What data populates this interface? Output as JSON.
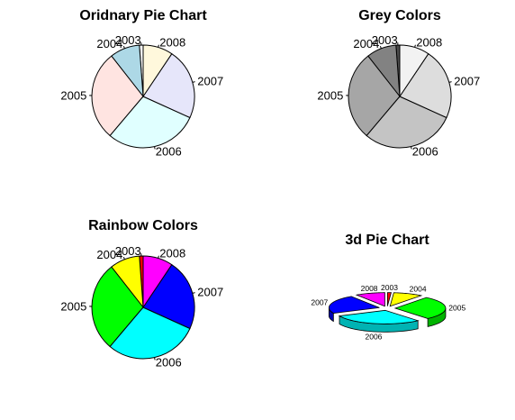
{
  "chart_data": [
    {
      "type": "pie",
      "title": "Oridnary Pie Chart",
      "categories": [
        "2003",
        "2004",
        "2005",
        "2006",
        "2007",
        "2008"
      ],
      "values": [
        1,
        8,
        24,
        25,
        19,
        8
      ],
      "colors": [
        "#ffffff",
        "#add8e6",
        "#ffe4e1",
        "#e0ffff",
        "#e6e6fa",
        "#fff8dc"
      ]
    },
    {
      "type": "pie",
      "title": "Grey Colors",
      "categories": [
        "2003",
        "2004",
        "2005",
        "2006",
        "2007",
        "2008"
      ],
      "values": [
        1,
        8,
        24,
        25,
        19,
        8
      ],
      "colors": [
        "#4d4d4d",
        "#828282",
        "#a6a6a6",
        "#c4c4c4",
        "#dddddd",
        "#f2f2f2"
      ]
    },
    {
      "type": "pie",
      "title": "Rainbow Colors",
      "categories": [
        "2003",
        "2004",
        "2005",
        "2006",
        "2007",
        "2008"
      ],
      "values": [
        1,
        8,
        24,
        25,
        19,
        8
      ],
      "colors": [
        "#ff0000",
        "#ffff00",
        "#00ff00",
        "#00ffff",
        "#0000ff",
        "#ff00ff"
      ]
    },
    {
      "type": "pie",
      "title": "3d Pie Chart",
      "categories": [
        "2003",
        "2004",
        "2005",
        "2006",
        "2007",
        "2008"
      ],
      "values": [
        1,
        8,
        24,
        25,
        19,
        8
      ],
      "colors": [
        "#ff0000",
        "#ffff00",
        "#00ff00",
        "#00ffff",
        "#0000ff",
        "#ff00ff"
      ]
    }
  ]
}
